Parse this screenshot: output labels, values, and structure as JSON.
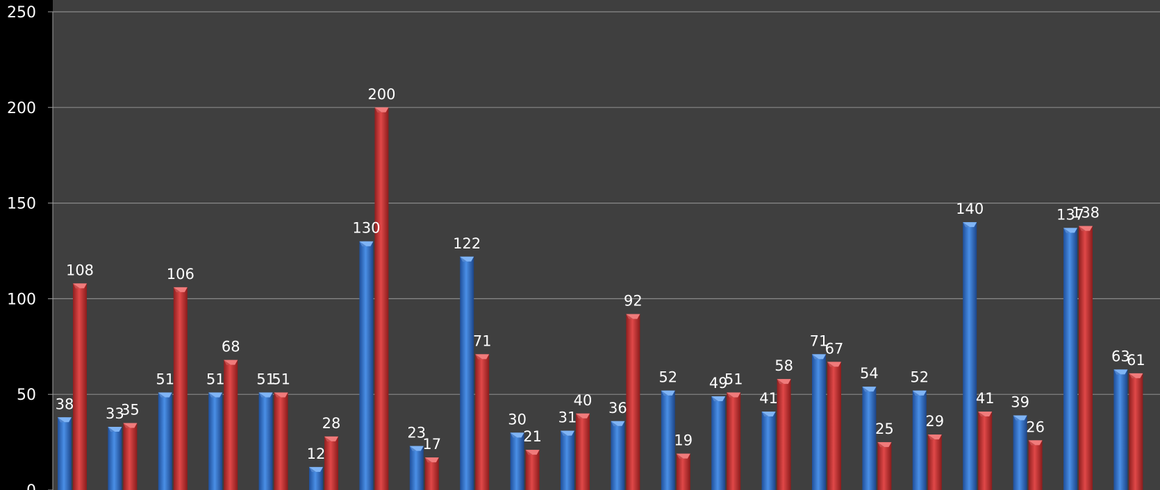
{
  "chart_data": {
    "type": "bar",
    "title": "",
    "xlabel": "",
    "ylabel": "",
    "ylim": [
      0,
      250
    ],
    "yticks": [
      0,
      50,
      100,
      150,
      200,
      250
    ],
    "grid": true,
    "colors": {
      "background": "#000000",
      "plot_area": "#3f3f3f",
      "gridline": "#8a8a8a",
      "text": "#ffffff",
      "blue_series": "#3d7fd6",
      "red_series": "#d63a3a"
    },
    "series": [
      {
        "values": [
          38,
          33,
          51,
          51,
          51,
          12,
          130,
          23,
          122,
          30,
          31,
          36,
          52,
          49,
          41,
          71,
          54,
          52,
          140,
          39,
          137,
          63
        ]
      },
      {
        "values": [
          108,
          35,
          106,
          68,
          51,
          28,
          200,
          17,
          71,
          21,
          40,
          92,
          19,
          51,
          58,
          67,
          25,
          29,
          41,
          26,
          138,
          61
        ]
      }
    ]
  }
}
